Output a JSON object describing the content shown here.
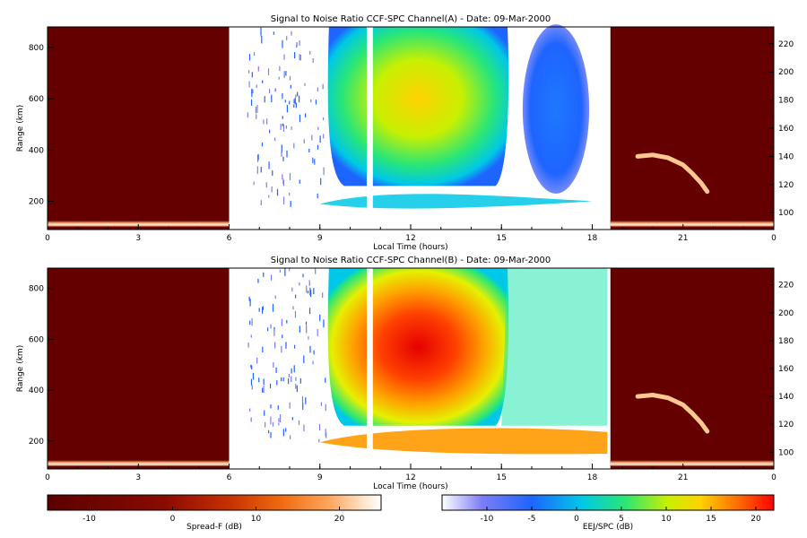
{
  "chart_data": [
    {
      "type": "heatmap",
      "title": "Signal to Noise Ratio CCF-SPC Channel(A) - Date: 09-Mar-2000",
      "xlabel": "Local Time (hours)",
      "ylabel": "Range (km)",
      "xlim": [
        0,
        24
      ],
      "ylim": [
        90,
        880
      ],
      "x_ticks": [
        "0",
        "3",
        "6",
        "9",
        "12",
        "15",
        "18",
        "21",
        "0"
      ],
      "y_ticks": [
        "200",
        "400",
        "600",
        "800"
      ],
      "y2_ticks": [
        "100",
        "120",
        "140",
        "160",
        "180",
        "200",
        "220"
      ],
      "y2lim": [
        88,
        232
      ],
      "regions": [
        {
          "name": "Spread-F",
          "x": [
            0,
            6
          ],
          "background_db": -15,
          "layer_range_km": [
            100,
            125
          ]
        },
        {
          "name": "EEJ/SPC",
          "x": [
            6,
            18.6
          ]
        },
        {
          "name": "Spread-F",
          "x": [
            18.6,
            24
          ],
          "background_db": -15,
          "echo_band_y2": [
            [
              19.5,
              140
            ],
            [
              20.0,
              141
            ],
            [
              20.5,
              139
            ],
            [
              21.0,
              134
            ],
            [
              21.3,
              128
            ],
            [
              21.6,
              121
            ],
            [
              21.8,
              115
            ]
          ]
        }
      ],
      "data_gap_hours": [
        10.55,
        10.75
      ]
    },
    {
      "type": "heatmap",
      "title": "Signal to Noise Ratio CCF-SPC Channel(B) - Date: 09-Mar-2000",
      "xlabel": "Local Time (hours)",
      "ylabel": "Range (km)",
      "xlim": [
        0,
        24
      ],
      "ylim": [
        90,
        880
      ],
      "x_ticks": [
        "0",
        "3",
        "6",
        "9",
        "12",
        "15",
        "18",
        "21",
        "0"
      ],
      "y_ticks": [
        "200",
        "400",
        "600",
        "800"
      ],
      "y2_ticks": [
        "100",
        "120",
        "140",
        "160",
        "180",
        "200",
        "220"
      ],
      "y2lim": [
        88,
        232
      ],
      "regions": [
        {
          "name": "Spread-F",
          "x": [
            0,
            6
          ],
          "background_db": -15,
          "layer_range_km": [
            100,
            125
          ]
        },
        {
          "name": "EEJ/SPC",
          "x": [
            6,
            18.6
          ]
        },
        {
          "name": "Spread-F",
          "x": [
            18.6,
            24
          ],
          "background_db": -15,
          "echo_band_y2": [
            [
              19.5,
              140
            ],
            [
              20.0,
              141
            ],
            [
              20.5,
              139
            ],
            [
              21.0,
              134
            ],
            [
              21.3,
              128
            ],
            [
              21.6,
              121
            ],
            [
              21.8,
              115
            ]
          ]
        }
      ],
      "data_gap_hours": [
        10.55,
        10.75
      ]
    }
  ],
  "colorbars": [
    {
      "label": "Spread-F (dB)",
      "range": [
        -15,
        25
      ],
      "ticks": [
        "-10",
        "0",
        "10",
        "20"
      ],
      "tick_values": [
        -10,
        0,
        10,
        20
      ],
      "colors": [
        "#5a0000",
        "#8b0a00",
        "#c83200",
        "#f06a10",
        "#ffa860",
        "#ffe6cc",
        "#ffffff"
      ]
    },
    {
      "label": "EEJ/SPC (dB)",
      "range": [
        -15,
        22
      ],
      "ticks": [
        "-10",
        "-5",
        "0",
        "5",
        "10",
        "15",
        "20"
      ],
      "tick_values": [
        -10,
        -5,
        0,
        5,
        10,
        15,
        20
      ],
      "colors": [
        "#ffffff",
        "#7d7df5",
        "#1e64ff",
        "#00c8e6",
        "#28e678",
        "#c8f000",
        "#ffd200",
        "#ff6400",
        "#ff0000"
      ]
    }
  ]
}
